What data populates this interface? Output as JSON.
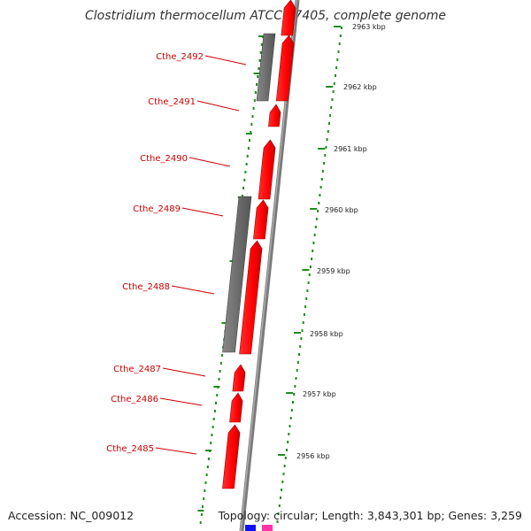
{
  "title": "Clostridium thermocellum ATCC 27405, complete genome",
  "footer": {
    "accession": "Accession: NC_009012",
    "topology": "Topology: circular; Length: 3,843,301 bp; Genes: 3,259"
  },
  "colors": {
    "gene": "#ff0000",
    "gene_label": "#cc0000",
    "homolog": "#707070",
    "backbone": "#7a7a7a",
    "tick": "#1e8c1e"
  },
  "scale_labels": [
    "2963 kbp",
    "2962 kbp",
    "2961 kbp",
    "2960 kbp",
    "2959 kbp",
    "2958 kbp",
    "2957 kbp",
    "2956 kbp"
  ],
  "gene_labels": [
    "Cthe_2492",
    "Cthe_2491",
    "Cthe_2490",
    "Cthe_2489",
    "Cthe_2488",
    "Cthe_2487",
    "Cthe_2486",
    "Cthe_2485"
  ]
}
